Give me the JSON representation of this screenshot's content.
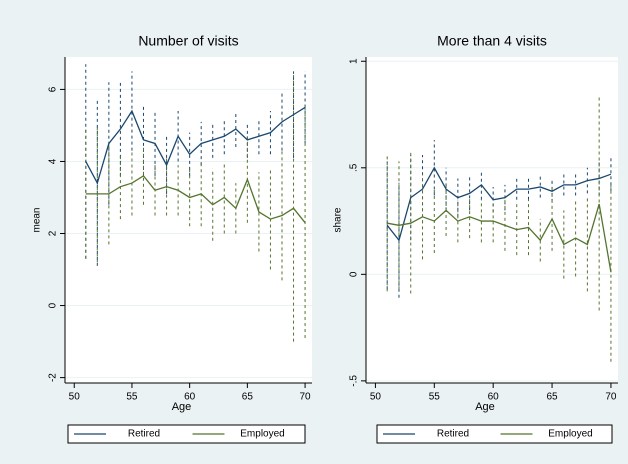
{
  "chart_data": [
    {
      "type": "line",
      "title": "Number of visits",
      "xlabel": "Age",
      "ylabel": "mean",
      "x": [
        51,
        52,
        53,
        54,
        55,
        56,
        57,
        58,
        59,
        60,
        61,
        62,
        63,
        64,
        65,
        66,
        67,
        68,
        69,
        70
      ],
      "xlim": [
        49.2,
        70.6
      ],
      "xticks": [
        50,
        55,
        60,
        65,
        70
      ],
      "ylim": [
        -2.15,
        6.9
      ],
      "yticks": [
        -2,
        0,
        2,
        4,
        6
      ],
      "grid": true,
      "legend": "bottom",
      "series": [
        {
          "name": "Retired",
          "color": "#1a476f",
          "values": [
            4.0,
            3.4,
            4.5,
            4.9,
            5.4,
            4.6,
            4.5,
            3.9,
            4.7,
            4.2,
            4.5,
            4.6,
            4.7,
            4.9,
            4.6,
            4.7,
            4.8,
            5.1,
            5.3,
            5.5
          ],
          "errors": [
            2.7,
            2.3,
            1.7,
            1.3,
            1.1,
            1.0,
            0.9,
            0.8,
            0.7,
            0.6,
            0.6,
            0.5,
            0.5,
            0.5,
            0.5,
            0.5,
            0.6,
            0.8,
            1.2,
            1.0
          ]
        },
        {
          "name": "Employed",
          "color": "#55752f",
          "values": [
            3.1,
            3.1,
            3.1,
            3.3,
            3.4,
            3.6,
            3.2,
            3.3,
            3.2,
            3.0,
            3.1,
            2.8,
            3.0,
            2.7,
            3.5,
            2.6,
            2.4,
            2.5,
            2.7,
            2.3
          ],
          "errors": [
            1.8,
            1.9,
            1.4,
            0.9,
            0.9,
            0.8,
            0.7,
            0.8,
            0.7,
            0.8,
            0.9,
            1.0,
            1.0,
            0.7,
            1.2,
            1.1,
            1.4,
            1.8,
            3.7,
            3.2
          ]
        }
      ]
    },
    {
      "type": "line",
      "title": "More than 4 visits",
      "xlabel": "Age",
      "ylabel": "share",
      "x": [
        51,
        52,
        53,
        54,
        55,
        56,
        57,
        58,
        59,
        60,
        61,
        62,
        63,
        64,
        65,
        66,
        67,
        68,
        69,
        70
      ],
      "xlim": [
        49.2,
        70.6
      ],
      "xticks": [
        50,
        55,
        60,
        65,
        70
      ],
      "ylim": [
        -0.51,
        1.02
      ],
      "yticks": [
        {
          "value": -0.5,
          "label": "-.5"
        },
        0,
        {
          "value": 0.5,
          "label": ".5"
        },
        1
      ],
      "grid": true,
      "legend": "bottom",
      "series": [
        {
          "name": "Retired",
          "color": "#1a476f",
          "values": [
            0.23,
            0.16,
            0.36,
            0.4,
            0.5,
            0.4,
            0.36,
            0.38,
            0.42,
            0.35,
            0.36,
            0.4,
            0.4,
            0.41,
            0.39,
            0.42,
            0.42,
            0.44,
            0.45,
            0.47
          ],
          "errors": [
            0.3,
            0.27,
            0.2,
            0.16,
            0.13,
            0.1,
            0.09,
            0.08,
            0.07,
            0.06,
            0.06,
            0.05,
            0.05,
            0.05,
            0.05,
            0.05,
            0.05,
            0.06,
            0.08,
            0.08
          ]
        },
        {
          "name": "Employed",
          "color": "#55752f",
          "values": [
            0.24,
            0.23,
            0.24,
            0.27,
            0.25,
            0.3,
            0.25,
            0.27,
            0.25,
            0.25,
            0.23,
            0.21,
            0.22,
            0.16,
            0.26,
            0.14,
            0.17,
            0.14,
            0.33,
            0.01
          ],
          "errors": [
            0.32,
            0.3,
            0.33,
            0.2,
            0.15,
            0.12,
            0.1,
            0.1,
            0.1,
            0.1,
            0.12,
            0.12,
            0.13,
            0.1,
            0.15,
            0.16,
            0.18,
            0.22,
            0.5,
            0.42
          ]
        }
      ]
    }
  ]
}
